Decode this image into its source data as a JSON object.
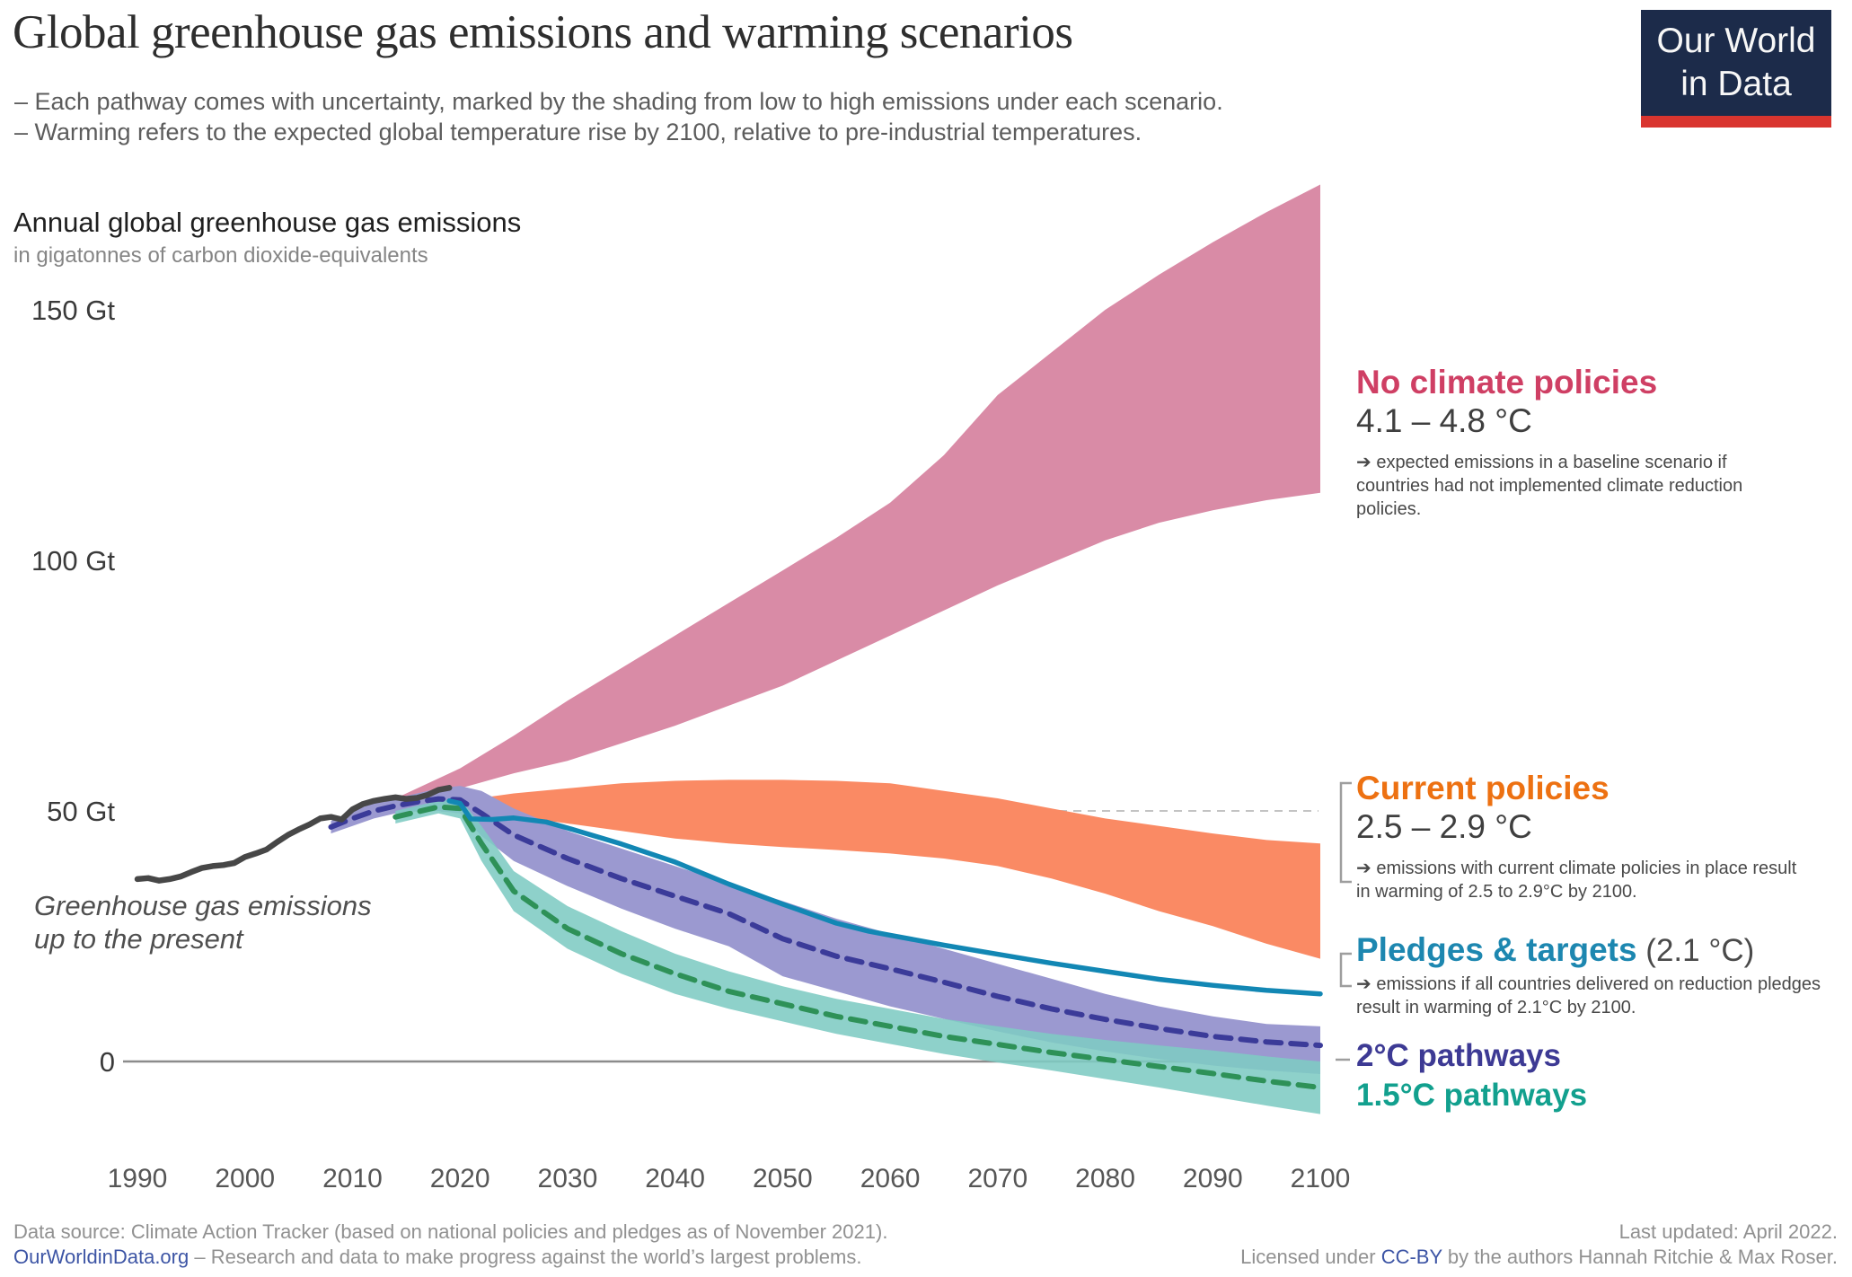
{
  "header": {
    "title": "Global greenhouse gas emissions and warming scenarios",
    "subtitle_lines": [
      "– Each pathway comes with uncertainty, marked by the shading from low to high emissions under each scenario.",
      "– Warming refers to the expected global temperature rise by 2100, relative to pre-industrial temperatures."
    ],
    "logo": {
      "line1": "Our World",
      "line2": "in Data",
      "bg_color": "#1c2b4a",
      "bar_color": "#d9352f"
    }
  },
  "chart": {
    "title": "Annual global greenhouse gas emissions",
    "unit_label": "in gigatonnes of carbon dioxide-equivalents",
    "history_label_line1": "Greenhouse gas emissions",
    "history_label_line2": "up to the present"
  },
  "annotations": {
    "no_policies": {
      "label": "No climate policies",
      "color": "#cf3f64",
      "range": "4.1 – 4.8 °C",
      "desc": "➔ expected emissions in a baseline scenario if countries had not implemented climate reduction policies."
    },
    "current": {
      "label": "Current policies",
      "color": "#ed7112",
      "range": "2.5 – 2.9 °C",
      "desc": "➔ emissions with current climate policies in place result in warming of 2.5 to 2.9°C by 2100."
    },
    "pledges": {
      "label": "Pledges & targets",
      "color": "#1d87b0",
      "suffix": " (2.1 °C)",
      "desc": "➔ emissions if all countries delivered on reduction pledges result in warming of 2.1°C by 2100."
    },
    "two_deg": {
      "label": "2°C pathways",
      "color": "#3d3a94"
    },
    "one_five": {
      "label": "1.5°C pathways",
      "color": "#12a08e"
    }
  },
  "footer": {
    "left_line1": "Data source: Climate Action Tracker (based on national policies and pledges as of November 2021).",
    "left_link": "OurWorldinData.org",
    "left_rest": " – Research and data to make progress against the world’s largest problems.",
    "right_line1": "Last updated: April 2022.",
    "right_pre": "Licensed under ",
    "right_link": "CC-BY",
    "right_post": " by the authors Hannah Ritchie & Max Roser."
  },
  "chart_data": {
    "type": "area",
    "title": "Annual global greenhouse gas emissions",
    "ylabel": "gigatonnes of CO2-equivalents",
    "xlim": [
      1990,
      2100
    ],
    "ylim": [
      -12,
      186
    ],
    "legend_position": "right-annotations",
    "y_ticks": [
      {
        "value": 150,
        "label": "150 Gt"
      },
      {
        "value": 100,
        "label": "100 Gt"
      },
      {
        "value": 50,
        "label": "50 Gt",
        "gridline": true
      },
      {
        "value": 0,
        "label": "0",
        "axisline": true
      }
    ],
    "x_ticks": [
      1990,
      2000,
      2010,
      2020,
      2030,
      2040,
      2050,
      2060,
      2070,
      2080,
      2090,
      2100
    ],
    "series": [
      {
        "id": "no-climate-policies-band",
        "name": "No climate policies (4.1–4.8 °C)",
        "kind": "band",
        "color": "#d98ba6",
        "opacity": 1,
        "x": [
          2013,
          2015,
          2020,
          2025,
          2030,
          2035,
          2040,
          2045,
          2050,
          2055,
          2060,
          2065,
          2070,
          2075,
          2080,
          2085,
          2090,
          2095,
          2100
        ],
        "high": [
          51.5,
          53.5,
          58.5,
          65,
          72,
          78.5,
          85,
          91.5,
          98,
          104.5,
          111.5,
          121,
          133,
          141.5,
          150,
          157,
          163.5,
          169.5,
          175
        ],
        "low": [
          51,
          52,
          54.5,
          57.5,
          60,
          63.5,
          67,
          71,
          75,
          80,
          85,
          90,
          95,
          99.5,
          104,
          107.5,
          110,
          112,
          113.5
        ]
      },
      {
        "id": "current-policies-band",
        "name": "Current policies (2.5–2.9 °C)",
        "kind": "band",
        "color": "#fa8a64",
        "opacity": 1,
        "x": [
          2020,
          2025,
          2030,
          2035,
          2040,
          2045,
          2050,
          2055,
          2060,
          2065,
          2070,
          2075,
          2080,
          2085,
          2090,
          2095,
          2100
        ],
        "high": [
          52,
          53.5,
          54.5,
          55.5,
          56,
          56.2,
          56.2,
          56,
          55.5,
          54,
          52.5,
          50.5,
          48.5,
          47,
          45.5,
          44.2,
          43.5
        ],
        "low": [
          50.5,
          49,
          47.5,
          46,
          44.5,
          43.5,
          42.8,
          42.2,
          41.5,
          40.5,
          39,
          36.5,
          33.5,
          30,
          27,
          23.5,
          20.5
        ]
      },
      {
        "id": "two-degree-band",
        "name": "2°C pathways range",
        "kind": "band",
        "color": "#9b99d0",
        "opacity": 1,
        "x": [
          2008,
          2010,
          2012,
          2014,
          2016,
          2018,
          2020,
          2022,
          2025,
          2030,
          2035,
          2040,
          2045,
          2050,
          2055,
          2060,
          2065,
          2070,
          2075,
          2080,
          2085,
          2090,
          2095,
          2100
        ],
        "high": [
          48,
          50,
          51.5,
          52.5,
          53.5,
          54.5,
          55,
          54,
          50.5,
          46,
          42.5,
          39,
          35.5,
          32,
          28.5,
          25.5,
          22.5,
          19.5,
          16.5,
          13.5,
          11,
          9,
          7.5,
          7
        ],
        "low": [
          45.5,
          47,
          48.5,
          49.5,
          50,
          50,
          49.5,
          45,
          40,
          35,
          30.5,
          26.5,
          23,
          17,
          14,
          11,
          8.5,
          6,
          3.8,
          2,
          0.5,
          -0.8,
          -1.8,
          -2.5
        ]
      },
      {
        "id": "one-five-degree-band",
        "name": "1.5°C pathways range",
        "kind": "band",
        "color": "#7ecbc3",
        "opacity": 0.88,
        "x": [
          2014,
          2016,
          2018,
          2020,
          2022,
          2025,
          2030,
          2035,
          2040,
          2045,
          2050,
          2055,
          2060,
          2065,
          2070,
          2075,
          2080,
          2085,
          2090,
          2095,
          2100
        ],
        "high": [
          50,
          51,
          52,
          52.5,
          47,
          38,
          31,
          26,
          21.5,
          18,
          15,
          12.5,
          10.5,
          8.5,
          7,
          5.5,
          4.3,
          3.2,
          2.2,
          1,
          0
        ],
        "low": [
          47.5,
          48.5,
          49.5,
          48.5,
          40,
          30,
          22.5,
          17.5,
          13.5,
          10.5,
          8,
          5.5,
          3.5,
          1.5,
          -0.2,
          -1.8,
          -3.5,
          -5.2,
          -7,
          -8.8,
          -10.5
        ]
      },
      {
        "id": "two-degree-median",
        "name": "2°C pathways median",
        "kind": "line",
        "color": "#3b3b99",
        "width": 6,
        "dash": "17 11",
        "x": [
          2008,
          2010,
          2012,
          2014,
          2016,
          2018,
          2020,
          2022,
          2025,
          2030,
          2035,
          2040,
          2045,
          2050,
          2055,
          2060,
          2065,
          2070,
          2075,
          2080,
          2085,
          2090,
          2095,
          2100
        ],
        "y": [
          46.8,
          48.5,
          50,
          51,
          51.8,
          52.4,
          52.2,
          49.5,
          45.2,
          40.5,
          36.5,
          33,
          29.5,
          24.5,
          21,
          18.5,
          15.8,
          13,
          10.5,
          8.4,
          6.6,
          5,
          3.9,
          3.2
        ]
      },
      {
        "id": "one-five-degree-median",
        "name": "1.5°C pathways median",
        "kind": "line",
        "color": "#2e9158",
        "width": 6,
        "dash": "17 11",
        "x": [
          2014,
          2016,
          2018,
          2020,
          2022,
          2025,
          2030,
          2035,
          2040,
          2045,
          2050,
          2055,
          2060,
          2065,
          2070,
          2075,
          2080,
          2085,
          2090,
          2095,
          2100
        ],
        "y": [
          48.8,
          49.8,
          50.8,
          50.5,
          43.5,
          34,
          26.5,
          21.5,
          17.5,
          14,
          11.5,
          9,
          7,
          5,
          3.4,
          1.8,
          0.4,
          -1,
          -2.4,
          -3.9,
          -5.2
        ]
      },
      {
        "id": "pledges-targets-line",
        "name": "Pledges & targets (2.1 °C)",
        "kind": "line",
        "color": "#1287b4",
        "width": 5.5,
        "x": [
          2019,
          2020,
          2021,
          2023,
          2025,
          2028,
          2030,
          2035,
          2040,
          2045,
          2050,
          2055,
          2058,
          2060,
          2065,
          2070,
          2075,
          2080,
          2085,
          2090,
          2095,
          2100
        ],
        "y": [
          52,
          51.5,
          48.4,
          48.3,
          48.6,
          47.8,
          46.6,
          43.4,
          39.8,
          35.4,
          31.4,
          27.6,
          26,
          25.2,
          23.2,
          21.4,
          19.6,
          18,
          16.4,
          15.2,
          14.2,
          13.5
        ]
      },
      {
        "id": "historical-emissions",
        "name": "Greenhouse gas emissions up to the present",
        "kind": "line",
        "color": "#474747",
        "width": 6.5,
        "x": [
          1990,
          1991,
          1992,
          1993,
          1994,
          1995,
          1996,
          1997,
          1998,
          1999,
          2000,
          2001,
          2002,
          2003,
          2004,
          2005,
          2006,
          2007,
          2008,
          2009,
          2010,
          2011,
          2012,
          2013,
          2014,
          2015,
          2016,
          2017,
          2018,
          2019
        ],
        "y": [
          36.4,
          36.6,
          36.1,
          36.4,
          36.9,
          37.8,
          38.6,
          39.0,
          39.2,
          39.6,
          40.8,
          41.5,
          42.3,
          43.8,
          45.2,
          46.3,
          47.3,
          48.5,
          48.8,
          48.3,
          50.3,
          51.4,
          52.0,
          52.4,
          52.7,
          52.4,
          52.6,
          53.2,
          54.2,
          54.6
        ]
      }
    ]
  }
}
